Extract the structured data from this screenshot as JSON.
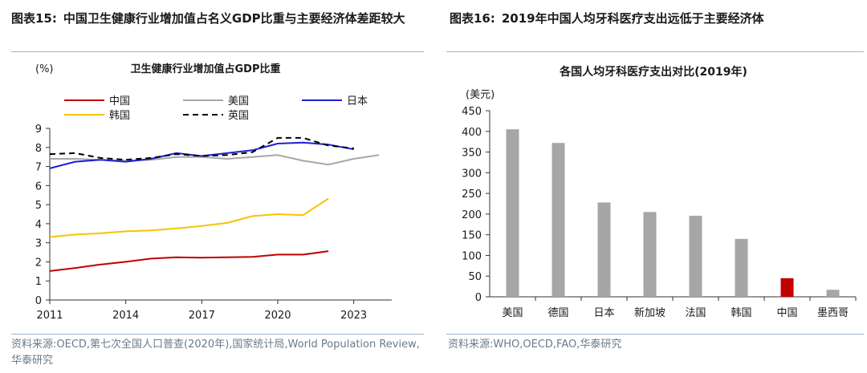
{
  "left_figure": {
    "number": "图表15:",
    "title": "中国卫生健康行业增加值占名义GDP比重与主要经济体差距较大",
    "source": "资料来源:OECD,第七次全国人口普查(2020年),国家统计局,World Population Review,华泰研究"
  },
  "right_figure": {
    "number": "图表16:",
    "title": "2019年中国人均牙科医疗支出远低于主要经济体",
    "source": "资料来源:WHO,OECD,FAO,华泰研究"
  },
  "colors": {
    "china": "#c00000",
    "usa": "#a6a6a6",
    "japan": "#1f1fd6",
    "korea": "#f5c400",
    "uk": "#000000",
    "bar": "#a6a6a6",
    "bar_highlight": "#c00000"
  },
  "chart_data": [
    {
      "type": "line",
      "title": "卫生健康行业增加值占GDP比重",
      "ylabel": "(%)",
      "xlabel": "",
      "ylim": [
        0,
        9
      ],
      "yticks": [
        0,
        1,
        2,
        3,
        4,
        5,
        6,
        7,
        8,
        9
      ],
      "xlim": [
        2011,
        2024.5
      ],
      "xticks": [
        2011,
        2014,
        2017,
        2020,
        2023
      ],
      "legend_position": "top",
      "series": [
        {
          "name": "中国",
          "color_key": "china",
          "style": "solid",
          "x": [
            2011,
            2012,
            2013,
            2014,
            2015,
            2016,
            2017,
            2018,
            2019,
            2020,
            2021,
            2022
          ],
          "values": [
            1.52,
            1.68,
            1.86,
            2.0,
            2.17,
            2.24,
            2.22,
            2.24,
            2.26,
            2.38,
            2.38,
            2.56
          ]
        },
        {
          "name": "美国",
          "color_key": "usa",
          "style": "solid",
          "x": [
            2011,
            2012,
            2013,
            2014,
            2015,
            2016,
            2017,
            2018,
            2019,
            2020,
            2021,
            2022,
            2023,
            2024
          ],
          "values": [
            7.4,
            7.4,
            7.35,
            7.3,
            7.35,
            7.5,
            7.5,
            7.4,
            7.5,
            7.6,
            7.3,
            7.1,
            7.4,
            7.6
          ]
        },
        {
          "name": "日本",
          "color_key": "japan",
          "style": "solid",
          "x": [
            2011,
            2012,
            2013,
            2014,
            2015,
            2016,
            2017,
            2018,
            2019,
            2020,
            2021,
            2022,
            2023
          ],
          "values": [
            6.9,
            7.25,
            7.35,
            7.25,
            7.4,
            7.7,
            7.55,
            7.7,
            7.85,
            8.2,
            8.25,
            8.15,
            7.9
          ]
        },
        {
          "name": "韩国",
          "color_key": "korea",
          "style": "solid",
          "x": [
            2011,
            2012,
            2013,
            2014,
            2015,
            2016,
            2017,
            2018,
            2019,
            2020,
            2021,
            2022
          ],
          "values": [
            3.3,
            3.43,
            3.5,
            3.6,
            3.65,
            3.75,
            3.88,
            4.04,
            4.4,
            4.5,
            4.45,
            5.32
          ]
        },
        {
          "name": "英国",
          "color_key": "uk",
          "style": "dashed",
          "x": [
            2011,
            2012,
            2013,
            2014,
            2015,
            2016,
            2017,
            2018,
            2019,
            2020,
            2021,
            2022,
            2023
          ],
          "values": [
            7.65,
            7.7,
            7.45,
            7.35,
            7.45,
            7.65,
            7.55,
            7.6,
            7.75,
            8.5,
            8.5,
            8.1,
            7.95
          ]
        }
      ]
    },
    {
      "type": "bar",
      "title": "各国人均牙科医疗支出对比(2019年)",
      "ylabel": "(美元)",
      "xlabel": "",
      "ylim": [
        0,
        450
      ],
      "yticks": [
        0,
        50,
        100,
        150,
        200,
        250,
        300,
        350,
        400,
        450
      ],
      "categories": [
        "美国",
        "德国",
        "日本",
        "新加坡",
        "法国",
        "韩国",
        "中国",
        "墨西哥"
      ],
      "values": [
        405,
        372,
        228,
        205,
        196,
        140,
        45,
        17
      ],
      "highlight": "中国"
    }
  ]
}
